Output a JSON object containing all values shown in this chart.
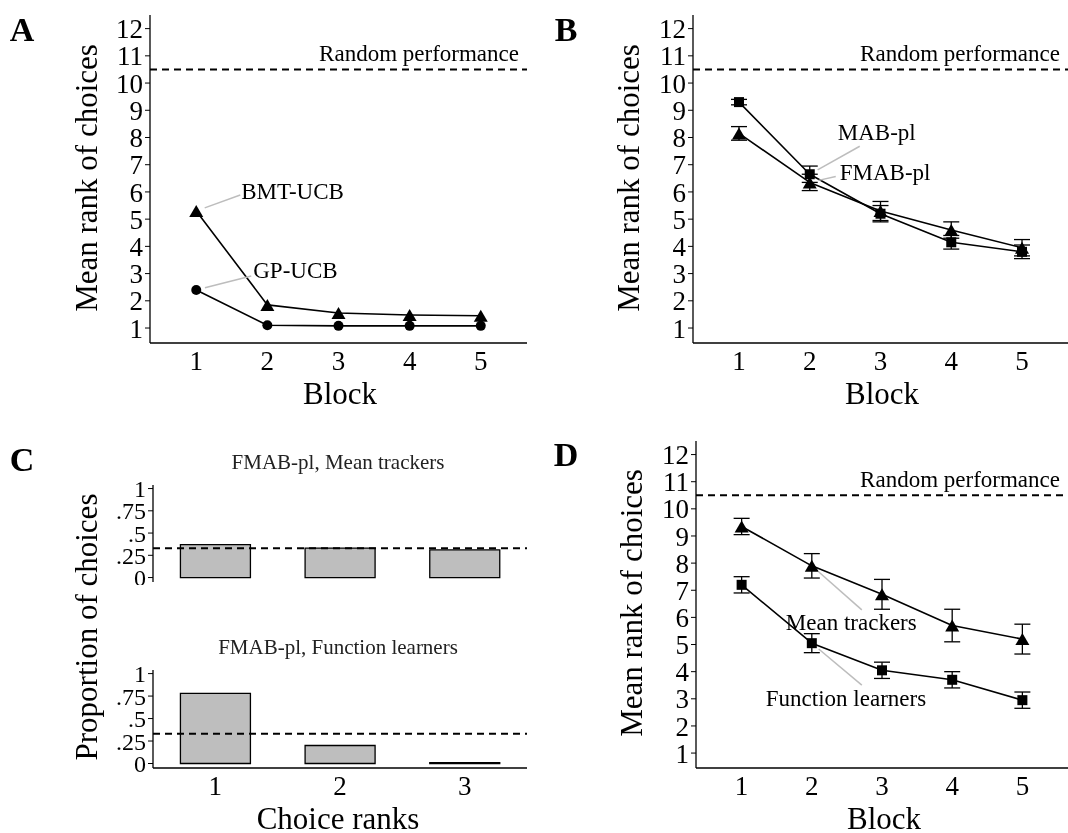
{
  "chart_data": [
    {
      "type": "line",
      "xlabel": "Block",
      "ylabel": "Mean rank of choices",
      "annotations": [
        "A"
      ],
      "x": [
        1,
        2,
        3,
        4,
        5
      ],
      "xlim": [
        0.35,
        5.65
      ],
      "xticks": [
        1,
        2,
        3,
        4,
        5
      ],
      "ylim": [
        0.45,
        12.5
      ],
      "yticks": [
        1,
        2,
        3,
        4,
        5,
        6,
        7,
        8,
        9,
        10,
        11,
        12
      ],
      "grid": false,
      "legend": false,
      "line_style": "solid",
      "ref_lines": [
        {
          "axis": "y",
          "value": 10.5,
          "label": "Random performance",
          "color": "#000000",
          "line_style": "dashed"
        }
      ],
      "series": [
        {
          "name": "BMT-UCB",
          "color": "#000000",
          "marker": "triangle",
          "values": [
            5.3,
            1.85,
            1.55,
            1.48,
            1.45
          ]
        },
        {
          "name": "GP-UCB",
          "color": "#000000",
          "marker": "circle",
          "values": [
            2.4,
            1.1,
            1.08,
            1.08,
            1.08
          ]
        }
      ]
    },
    {
      "type": "line",
      "xlabel": "Block",
      "ylabel": "Mean rank of choices",
      "annotations": [
        "B"
      ],
      "x": [
        1,
        2,
        3,
        4,
        5
      ],
      "xlim": [
        0.35,
        5.65
      ],
      "xticks": [
        1,
        2,
        3,
        4,
        5
      ],
      "ylim": [
        0.45,
        12.5
      ],
      "yticks": [
        1,
        2,
        3,
        4,
        5,
        6,
        7,
        8,
        9,
        10,
        11,
        12
      ],
      "grid": false,
      "legend": false,
      "line_style": "solid",
      "ref_lines": [
        {
          "axis": "y",
          "value": 10.5,
          "label": "Random performance",
          "color": "#000000",
          "line_style": "dashed"
        }
      ],
      "series": [
        {
          "name": "MAB-pl",
          "color": "#000000",
          "marker": "square",
          "values": [
            9.3,
            6.65,
            5.2,
            4.15,
            3.8
          ],
          "errors": [
            0.1,
            0.3,
            0.3,
            0.25,
            0.25
          ]
        },
        {
          "name": "FMAB-pl",
          "color": "#000000",
          "marker": "triangle",
          "values": [
            8.15,
            6.35,
            5.3,
            4.6,
            3.95
          ],
          "errors": [
            0.25,
            0.3,
            0.35,
            0.3,
            0.3
          ]
        }
      ]
    },
    {
      "type": "bar",
      "title": "FMAB-pl, Mean trackers",
      "ylabel": "Proportion of choices",
      "annotations": [
        "C"
      ],
      "categories": [
        null,
        null,
        null
      ],
      "values": [
        0.37,
        0.33,
        0.31
      ],
      "color": "#bebebe",
      "ylim": [
        -0.05,
        1.04
      ],
      "yticks": [
        {
          "value": 0,
          "label": "0"
        },
        {
          "value": 0.25,
          "label": ".25"
        },
        {
          "value": 0.5,
          "label": ".5"
        },
        {
          "value": 0.75,
          "label": ".75"
        },
        {
          "value": 1,
          "label": "1"
        }
      ],
      "tick_labels": "y",
      "grid": false,
      "legend": false,
      "ref_lines": [
        {
          "axis": "y",
          "value": 0.33,
          "color": "#000000",
          "line_style": "dashed"
        }
      ]
    },
    {
      "type": "bar",
      "title": "FMAB-pl, Function learners",
      "xlabel": "Choice ranks",
      "categories": [
        "1",
        "2",
        "3"
      ],
      "values": [
        0.78,
        0.2,
        0.01
      ],
      "color": "#bebebe",
      "ylim": [
        -0.05,
        1.04
      ],
      "yticks": [
        {
          "value": 0,
          "label": "0"
        },
        {
          "value": 0.25,
          "label": ".25"
        },
        {
          "value": 0.5,
          "label": ".5"
        },
        {
          "value": 0.75,
          "label": ".75"
        },
        {
          "value": 1,
          "label": "1"
        }
      ],
      "grid": false,
      "legend": false,
      "ref_lines": [
        {
          "axis": "y",
          "value": 0.33,
          "color": "#000000",
          "line_style": "dashed"
        }
      ]
    },
    {
      "type": "line",
      "xlabel": "Block",
      "ylabel": "Mean rank of choices",
      "annotations": [
        "D"
      ],
      "x": [
        1,
        2,
        3,
        4,
        5
      ],
      "xlim": [
        0.35,
        5.65
      ],
      "xticks": [
        1,
        2,
        3,
        4,
        5
      ],
      "ylim": [
        0.45,
        12.5
      ],
      "yticks": [
        1,
        2,
        3,
        4,
        5,
        6,
        7,
        8,
        9,
        10,
        11,
        12
      ],
      "grid": false,
      "legend": false,
      "line_style": "solid",
      "ref_lines": [
        {
          "axis": "y",
          "value": 10.5,
          "label": "Random performance",
          "color": "#000000",
          "line_style": "dashed"
        }
      ],
      "series": [
        {
          "name": "Mean trackers",
          "color": "#000000",
          "marker": "triangle",
          "values": [
            9.35,
            7.9,
            6.85,
            5.7,
            5.2
          ],
          "errors": [
            0.3,
            0.45,
            0.55,
            0.6,
            0.55
          ]
        },
        {
          "name": "Function learners",
          "color": "#000000",
          "marker": "square",
          "values": [
            7.2,
            5.05,
            4.05,
            3.7,
            2.95
          ],
          "errors": [
            0.3,
            0.35,
            0.3,
            0.3,
            0.3
          ]
        }
      ]
    }
  ]
}
